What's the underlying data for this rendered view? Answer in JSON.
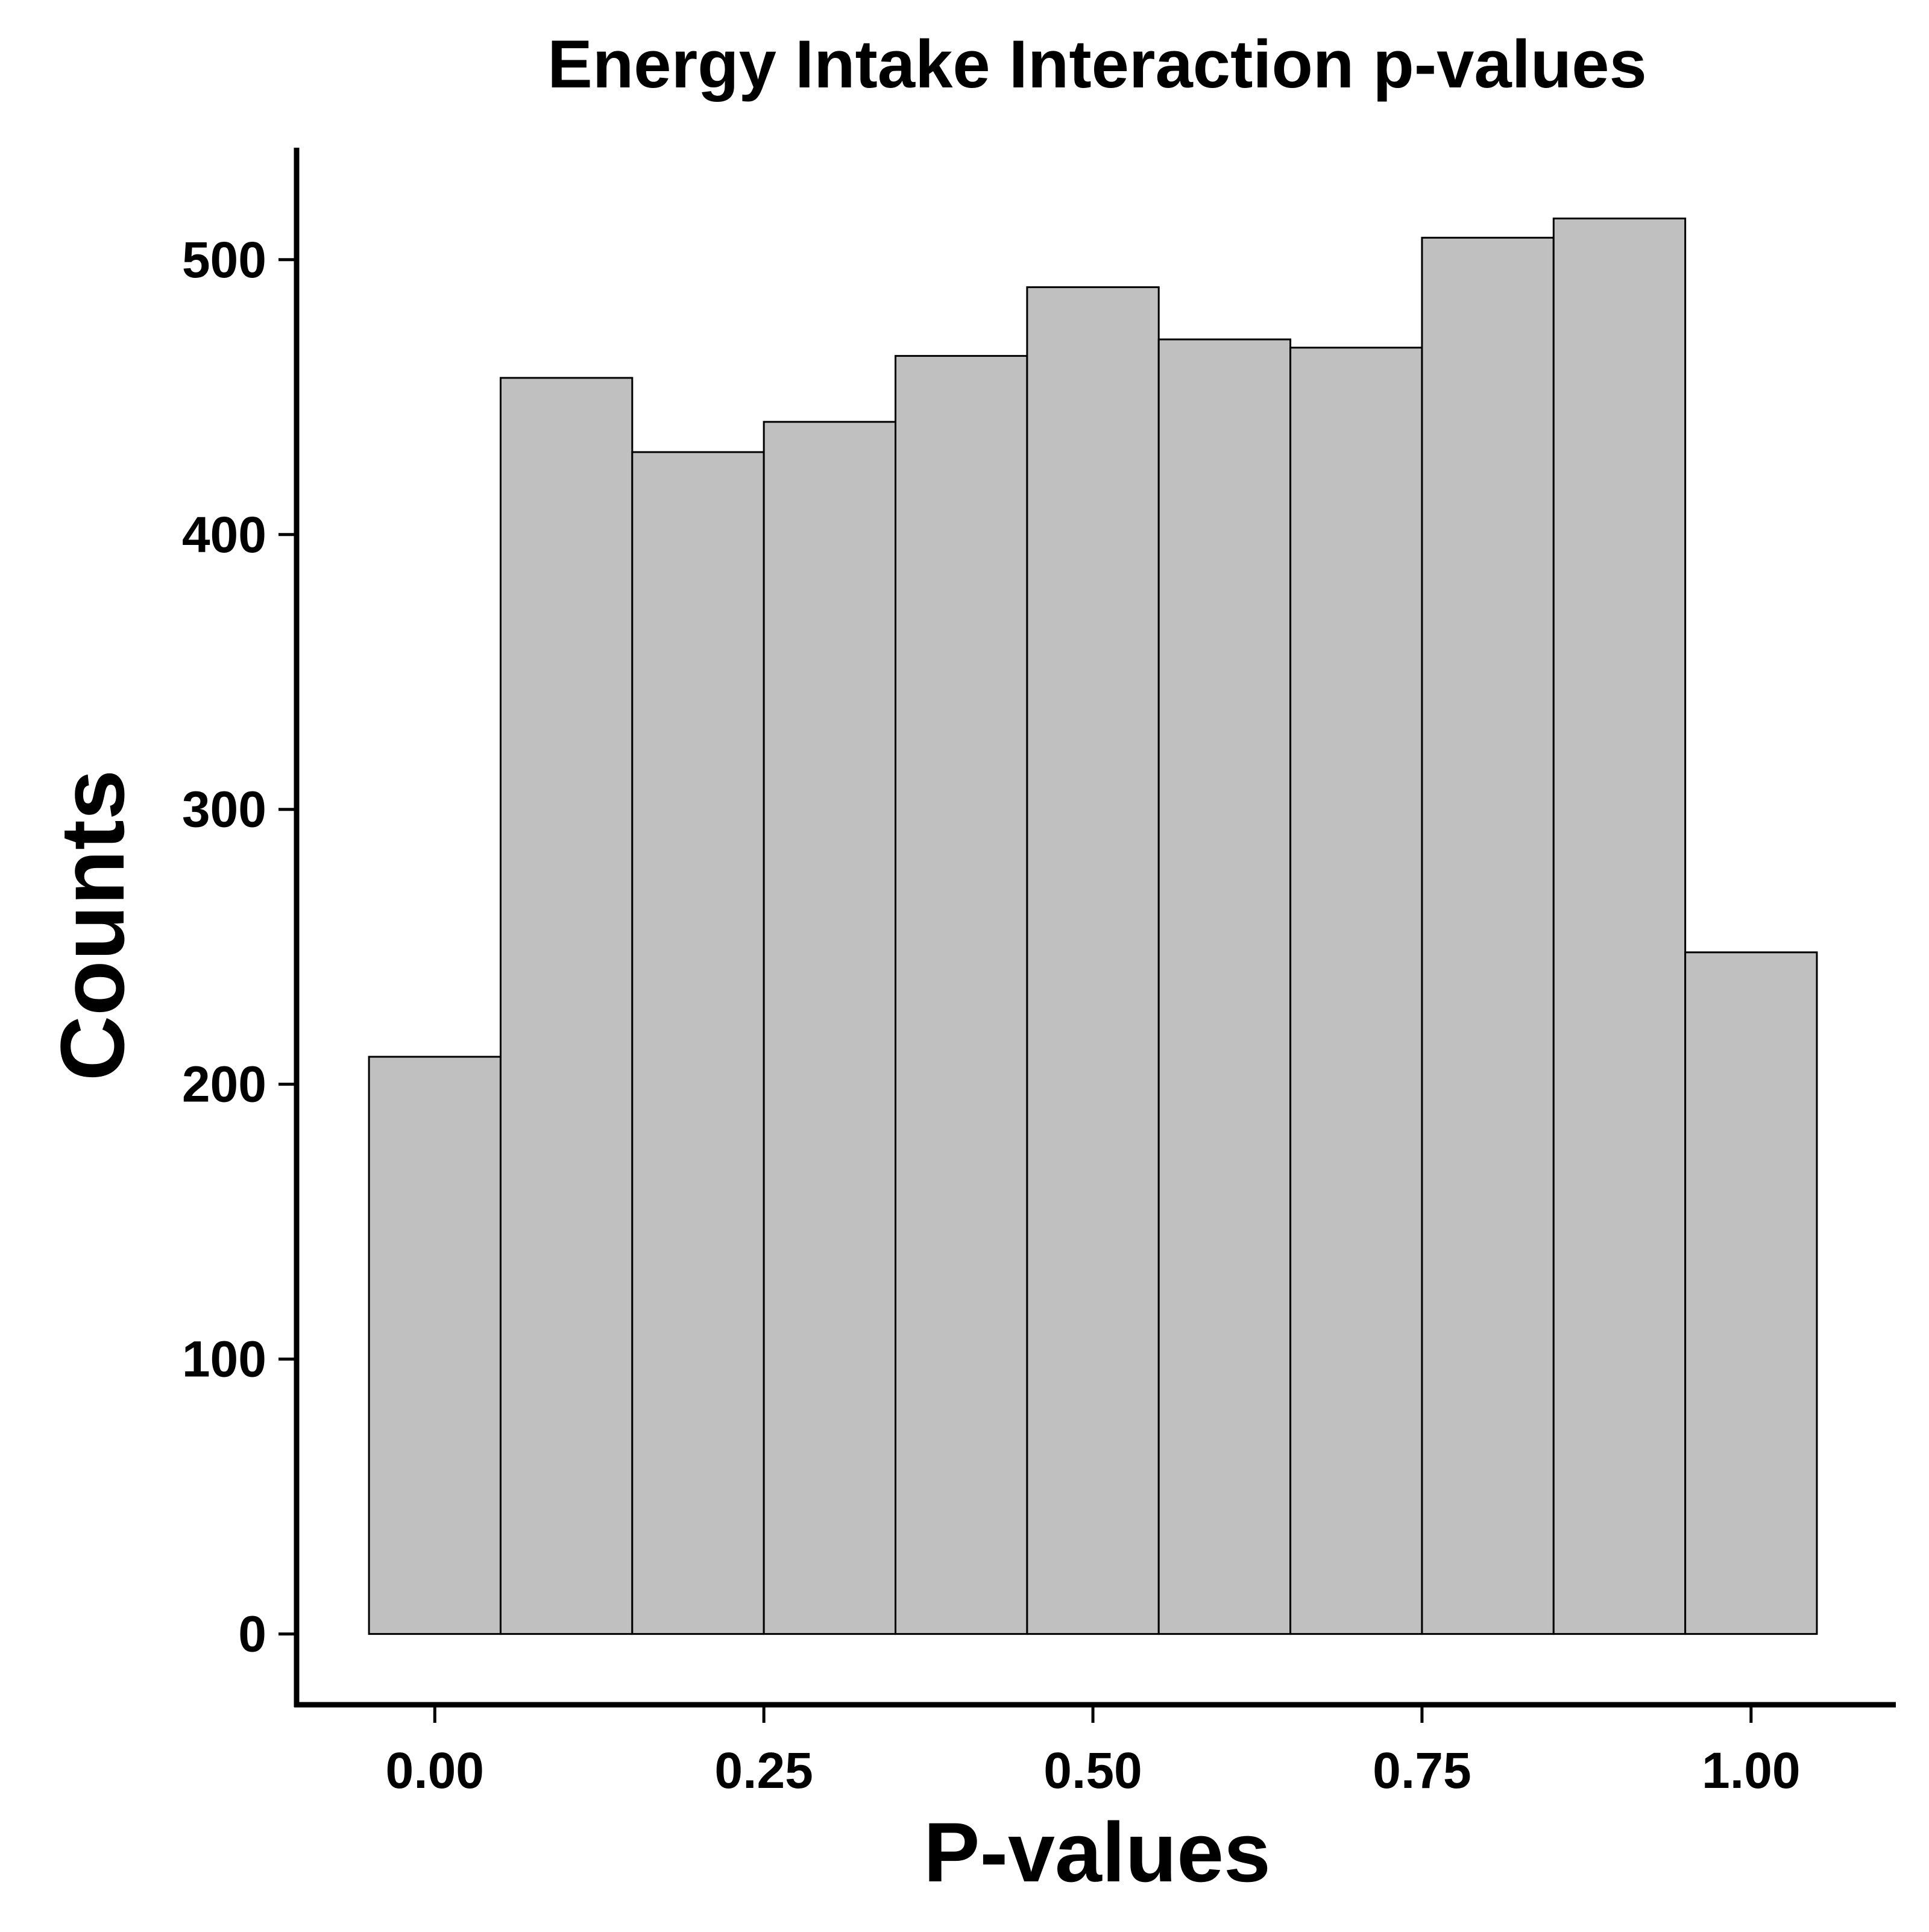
{
  "chart_data": {
    "type": "bar",
    "title": "Energy Intake Interaction p-values",
    "xlabel": "P-values",
    "ylabel": "Counts",
    "bins": [
      {
        "start": -0.05,
        "end": 0.05,
        "count": 210
      },
      {
        "start": 0.05,
        "end": 0.15,
        "count": 457
      },
      {
        "start": 0.15,
        "end": 0.25,
        "count": 430
      },
      {
        "start": 0.25,
        "end": 0.35,
        "count": 441
      },
      {
        "start": 0.35,
        "end": 0.45,
        "count": 465
      },
      {
        "start": 0.45,
        "end": 0.55,
        "count": 490
      },
      {
        "start": 0.55,
        "end": 0.65,
        "count": 471
      },
      {
        "start": 0.65,
        "end": 0.75,
        "count": 468
      },
      {
        "start": 0.75,
        "end": 0.85,
        "count": 508
      },
      {
        "start": 0.85,
        "end": 0.95,
        "count": 515
      },
      {
        "start": 0.95,
        "end": 1.05,
        "count": 248
      }
    ],
    "xlim": [
      -0.105,
      1.11
    ],
    "ylim": [
      -25.75,
      540.75
    ],
    "x_ticks": [
      0,
      0.25,
      0.5,
      0.75,
      1
    ],
    "x_tick_labels": [
      "0.00",
      "0.25",
      "0.50",
      "0.75",
      "1.00"
    ],
    "y_ticks": [
      0,
      100,
      200,
      300,
      400,
      500
    ],
    "y_tick_labels": [
      "0",
      "100",
      "200",
      "300",
      "400",
      "500"
    ],
    "grid": false,
    "legend": "none",
    "colors": {
      "bar_fill": "#c0c0c0",
      "bar_stroke": "#000000",
      "axis": "#000000",
      "background": "#ffffff"
    }
  }
}
